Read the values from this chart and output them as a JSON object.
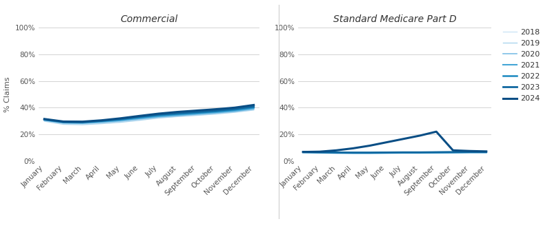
{
  "months": [
    "January",
    "February",
    "March",
    "April",
    "May",
    "June",
    "July",
    "August",
    "September",
    "October",
    "November",
    "December"
  ],
  "years": [
    "2018",
    "2019",
    "2020",
    "2021",
    "2022",
    "2023",
    "2024"
  ],
  "colors": {
    "2018": "#cce5f5",
    "2019": "#aad4ee",
    "2020": "#7bbfe6",
    "2021": "#44a5d6",
    "2022": "#1a88c0",
    "2023": "#1068a0",
    "2024": "#0a4e85"
  },
  "linewidths": {
    "2018": 1.0,
    "2019": 1.0,
    "2020": 1.2,
    "2021": 1.5,
    "2022": 1.8,
    "2023": 2.0,
    "2024": 2.2
  },
  "commercial": {
    "2018": [
      30.2,
      28.0,
      27.8,
      28.5,
      29.5,
      31.0,
      32.5,
      33.5,
      34.5,
      35.5,
      36.8,
      38.5
    ],
    "2019": [
      29.8,
      27.5,
      27.2,
      28.0,
      29.0,
      30.5,
      32.2,
      33.3,
      34.2,
      35.2,
      36.5,
      38.2
    ],
    "2020": [
      30.5,
      28.5,
      28.2,
      29.0,
      30.0,
      31.5,
      33.0,
      34.0,
      35.0,
      36.0,
      37.2,
      39.0
    ],
    "2021": [
      30.8,
      28.8,
      28.6,
      29.4,
      30.5,
      32.0,
      33.5,
      34.5,
      35.5,
      36.5,
      37.7,
      39.5
    ],
    "2022": [
      31.0,
      29.2,
      29.0,
      30.0,
      31.2,
      32.8,
      34.3,
      35.3,
      36.2,
      37.2,
      38.5,
      40.3
    ],
    "2023": [
      31.2,
      29.3,
      29.2,
      30.2,
      31.5,
      33.2,
      34.8,
      35.8,
      36.7,
      37.7,
      39.0,
      40.8
    ],
    "2024": [
      31.5,
      29.6,
      29.5,
      30.5,
      32.0,
      33.8,
      35.5,
      36.8,
      37.8,
      38.8,
      40.0,
      42.0
    ]
  },
  "medicare": {
    "2018": [
      6.0,
      5.8,
      5.6,
      5.5,
      5.5,
      5.6,
      5.7,
      5.7,
      5.8,
      5.9,
      6.0,
      6.0
    ],
    "2019": [
      6.2,
      6.0,
      5.8,
      5.7,
      5.7,
      5.8,
      5.9,
      5.9,
      6.0,
      6.1,
      6.2,
      6.2
    ],
    "2020": [
      6.3,
      6.1,
      5.9,
      5.8,
      5.8,
      5.9,
      6.0,
      6.0,
      6.1,
      6.2,
      6.3,
      6.3
    ],
    "2021": [
      6.5,
      6.3,
      6.1,
      6.0,
      6.0,
      6.1,
      6.2,
      6.2,
      6.3,
      6.4,
      6.5,
      6.5
    ],
    "2022": [
      6.7,
      6.5,
      6.3,
      6.2,
      6.2,
      6.3,
      6.4,
      6.4,
      6.5,
      6.6,
      6.7,
      6.7
    ],
    "2023": [
      6.8,
      6.6,
      6.4,
      6.3,
      6.3,
      6.4,
      6.5,
      6.5,
      6.6,
      6.7,
      6.8,
      6.8
    ],
    "2024": [
      6.8,
      7.0,
      8.0,
      9.5,
      11.5,
      14.0,
      16.5,
      19.0,
      22.0,
      8.0,
      7.5,
      7.2
    ]
  },
  "ylim": [
    0,
    100
  ],
  "yticks": [
    0,
    20,
    40,
    60,
    80,
    100
  ],
  "ylabel": "% Claims",
  "title_commercial": "Commercial",
  "title_medicare": "Standard Medicare Part D",
  "bg_color": "#ffffff",
  "grid_color": "#cccccc",
  "title_fontsize": 10,
  "label_fontsize": 8,
  "tick_fontsize": 7.5
}
